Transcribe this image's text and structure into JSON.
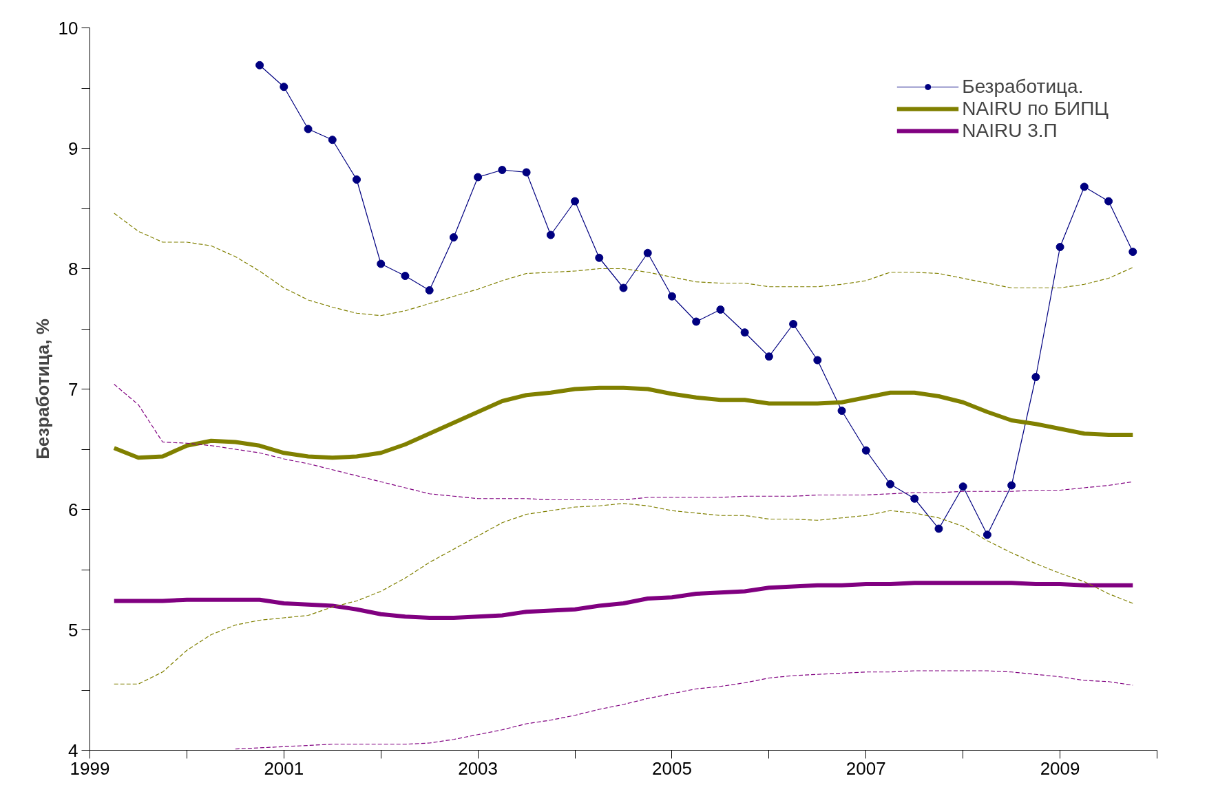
{
  "chart_data": {
    "type": "line",
    "ylabel": "Безработица, %",
    "xlim": [
      1999,
      2010
    ],
    "ylim": [
      4,
      10
    ],
    "xticks": [
      1999,
      {
        "value": 2000,
        "label": null
      },
      2001,
      {
        "value": 2002,
        "label": null
      },
      2003,
      {
        "value": 2004,
        "label": null
      },
      2005,
      {
        "value": 2006,
        "label": null
      },
      2007,
      {
        "value": 2008,
        "label": null
      },
      2009,
      {
        "value": 2010,
        "label": null
      }
    ],
    "yticks": [
      4,
      {
        "value": 4.5,
        "label": null
      },
      5,
      {
        "value": 5.5,
        "label": null
      },
      6,
      {
        "value": 6.5,
        "label": null
      },
      7,
      {
        "value": 7.5,
        "label": null
      },
      8,
      {
        "value": 8.5,
        "label": null
      },
      9,
      {
        "value": 9.5,
        "label": null
      },
      10
    ],
    "grid": false,
    "legend": "top right",
    "series": [
      {
        "name": "Безработица.",
        "color": "#000080",
        "marker": "circle",
        "line_style": "solid",
        "x": [
          2000.75,
          2001.0,
          2001.25,
          2001.5,
          2001.75,
          2002.0,
          2002.25,
          2002.5,
          2002.75,
          2003.0,
          2003.25,
          2003.5,
          2003.75,
          2004.0,
          2004.25,
          2004.5,
          2004.75,
          2005.0,
          2005.25,
          2005.5,
          2005.75,
          2006.0,
          2006.25,
          2006.5,
          2006.75,
          2007.0,
          2007.25,
          2007.5,
          2007.75,
          2008.0,
          2008.25,
          2008.5,
          2008.75,
          2009.0,
          2009.25,
          2009.5,
          2009.75
        ],
        "values": [
          9.69,
          9.51,
          9.16,
          9.07,
          8.74,
          8.04,
          7.94,
          7.82,
          8.26,
          8.76,
          8.82,
          8.8,
          8.28,
          8.56,
          8.09,
          7.84,
          8.13,
          7.77,
          7.56,
          7.66,
          7.47,
          7.27,
          7.54,
          7.24,
          6.82,
          6.49,
          6.21,
          6.09,
          5.84,
          6.19,
          5.79,
          6.2,
          7.1,
          8.18,
          8.68,
          8.56,
          8.14
        ]
      },
      {
        "name": "NAIRU по БИПЦ",
        "color": "#808000",
        "marker": "none",
        "line_style": "solid",
        "values": [
          6.51,
          6.43,
          6.44,
          6.53,
          6.57,
          6.56,
          6.53,
          6.47,
          6.44,
          6.43,
          6.44,
          6.47,
          6.54,
          6.63,
          6.72,
          6.81,
          6.9,
          6.95,
          6.97,
          7.0,
          7.01,
          7.01,
          7.0,
          6.96,
          6.93,
          6.91,
          6.91,
          6.88,
          6.88,
          6.88,
          6.89,
          6.93,
          6.97,
          6.97,
          6.94,
          6.89,
          6.81,
          6.74,
          6.71,
          6.67,
          6.63,
          6.62,
          6.62
        ]
      },
      {
        "name": "NAIRU 3.П",
        "color": "#800080",
        "marker": "none",
        "line_style": "solid",
        "values": [
          5.24,
          5.24,
          5.24,
          5.25,
          5.25,
          5.25,
          5.25,
          5.22,
          5.21,
          5.2,
          5.17,
          5.13,
          5.11,
          5.1,
          5.1,
          5.11,
          5.12,
          5.15,
          5.16,
          5.17,
          5.2,
          5.22,
          5.26,
          5.27,
          5.3,
          5.31,
          5.32,
          5.35,
          5.36,
          5.37,
          5.37,
          5.38,
          5.38,
          5.39,
          5.39,
          5.39,
          5.39,
          5.39,
          5.38,
          5.38,
          5.37,
          5.37,
          5.37
        ]
      },
      {
        "color": "#808000",
        "marker": "none",
        "line_style": "dashed",
        "values": [
          8.46,
          8.31,
          8.22,
          8.22,
          8.19,
          8.1,
          7.98,
          7.84,
          7.74,
          7.68,
          7.63,
          7.61,
          7.65,
          7.71,
          7.77,
          7.83,
          7.9,
          7.96,
          7.97,
          7.98,
          8.0,
          8.0,
          7.97,
          7.93,
          7.89,
          7.88,
          7.88,
          7.85,
          7.85,
          7.85,
          7.87,
          7.9,
          7.97,
          7.97,
          7.96,
          7.92,
          7.88,
          7.84,
          7.84,
          7.84,
          7.87,
          7.92,
          8.01
        ]
      },
      {
        "color": "#808000",
        "marker": "none",
        "line_style": "dashed",
        "values": [
          4.55,
          4.55,
          4.65,
          4.83,
          4.96,
          5.04,
          5.08,
          5.1,
          5.12,
          5.19,
          5.24,
          5.32,
          5.43,
          5.56,
          5.67,
          5.78,
          5.89,
          5.96,
          5.99,
          6.02,
          6.03,
          6.05,
          6.03,
          5.99,
          5.97,
          5.95,
          5.95,
          5.92,
          5.92,
          5.91,
          5.93,
          5.95,
          5.99,
          5.97,
          5.93,
          5.86,
          5.74,
          5.64,
          5.55,
          5.47,
          5.4,
          5.3,
          5.22
        ]
      },
      {
        "color": "#800080",
        "marker": "none",
        "line_style": "dashed",
        "values": [
          7.04,
          6.87,
          6.56,
          6.55,
          6.53,
          6.5,
          6.47,
          6.42,
          6.38,
          6.33,
          6.28,
          6.23,
          6.18,
          6.13,
          6.11,
          6.09,
          6.09,
          6.09,
          6.08,
          6.08,
          6.08,
          6.08,
          6.1,
          6.1,
          6.1,
          6.1,
          6.11,
          6.11,
          6.11,
          6.12,
          6.12,
          6.12,
          6.13,
          6.14,
          6.14,
          6.15,
          6.15,
          6.15,
          6.16,
          6.16,
          6.18,
          6.2,
          6.23
        ]
      },
      {
        "color": "#800080",
        "marker": "none",
        "line_style": "dashed",
        "values": [
          null,
          null,
          null,
          null,
          null,
          4.01,
          4.02,
          4.03,
          4.04,
          4.05,
          4.05,
          4.05,
          4.05,
          4.06,
          4.09,
          4.13,
          4.17,
          4.22,
          4.25,
          4.29,
          4.34,
          4.38,
          4.43,
          4.47,
          4.51,
          4.53,
          4.56,
          4.6,
          4.62,
          4.63,
          4.64,
          4.65,
          4.65,
          4.66,
          4.66,
          4.66,
          4.66,
          4.65,
          4.63,
          4.61,
          4.58,
          4.57,
          4.54
        ]
      }
    ],
    "x": [
      1999.25,
      1999.5,
      1999.75,
      2000.0,
      2000.25,
      2000.5,
      2000.75,
      2001.0,
      2001.25,
      2001.5,
      2001.75,
      2002.0,
      2002.25,
      2002.5,
      2002.75,
      2003.0,
      2003.25,
      2003.5,
      2003.75,
      2004.0,
      2004.25,
      2004.5,
      2004.75,
      2005.0,
      2005.25,
      2005.5,
      2005.75,
      2006.0,
      2006.25,
      2006.5,
      2006.75,
      2007.0,
      2007.25,
      2007.5,
      2007.75,
      2008.0,
      2008.25,
      2008.5,
      2008.75,
      2009.0,
      2009.25,
      2009.5,
      2009.75
    ]
  }
}
